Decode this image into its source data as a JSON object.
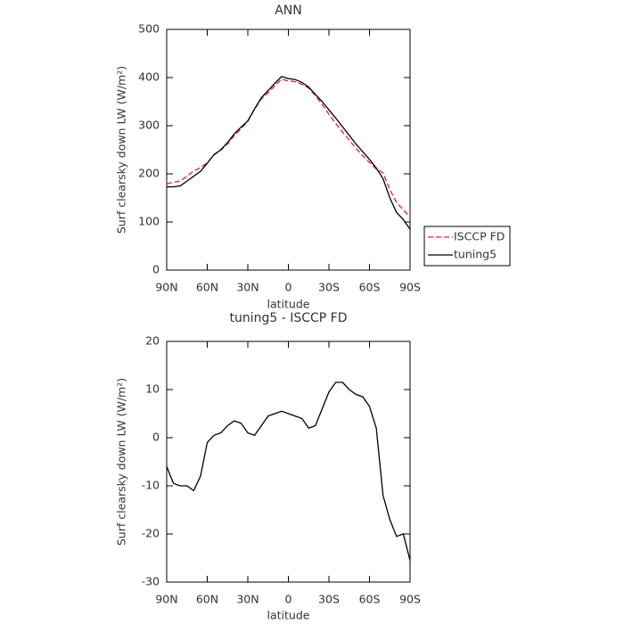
{
  "chart_data": [
    {
      "type": "line",
      "title": "ANN",
      "xlabel": "latitude",
      "ylabel": "Surf clearsky down LW (W/m²)",
      "x": [
        90,
        85,
        80,
        75,
        70,
        65,
        60,
        55,
        50,
        45,
        40,
        35,
        30,
        25,
        20,
        15,
        10,
        5,
        0,
        -5,
        -10,
        -15,
        -20,
        -25,
        -30,
        -35,
        -40,
        -45,
        -50,
        -55,
        -60,
        -65,
        -70,
        -75,
        -80,
        -85,
        -90
      ],
      "series": [
        {
          "name": "ISCCP FD",
          "color": "#e8202a",
          "dash": true,
          "values": [
            179,
            182.5,
            185,
            195,
            206,
            213,
            223,
            239.5,
            249,
            262.5,
            279.5,
            294,
            309,
            334.5,
            355.5,
            368.5,
            383,
            396.5,
            393,
            391.5,
            386,
            378,
            362.5,
            344,
            323.5,
            304.5,
            286.5,
            270,
            253,
            237.5,
            223.5,
            210,
            202,
            167,
            140.5,
            125,
            110.5
          ]
        },
        {
          "name": "tuning5",
          "color": "#000000",
          "dash": false,
          "values": [
            173,
            173,
            175,
            185,
            195,
            205,
            222,
            240,
            250,
            265,
            283,
            297,
            310,
            335,
            358,
            373,
            388,
            402,
            398,
            396,
            390,
            380,
            365,
            350,
            333,
            316,
            298,
            280,
            262,
            246,
            230,
            212,
            190,
            150,
            120,
            105,
            85
          ]
        }
      ],
      "xlim": [
        90,
        -90
      ],
      "xticks": [
        {
          "value": 90,
          "label": "90N"
        },
        {
          "value": 60,
          "label": "60N"
        },
        {
          "value": 30,
          "label": "30N"
        },
        0,
        {
          "value": -30,
          "label": "30S"
        },
        {
          "value": -60,
          "label": "60S"
        },
        {
          "value": -90,
          "label": "90S"
        }
      ],
      "ylim": [
        0,
        500
      ],
      "yticks": [
        0,
        100,
        200,
        300,
        400,
        500
      ],
      "legend": "right"
    },
    {
      "type": "line",
      "title": "tuning5 - ISCCP FD",
      "xlabel": "latitude",
      "ylabel": "Surf clearsky down LW (W/m²)",
      "x": [
        90,
        85,
        80,
        75,
        70,
        65,
        60,
        55,
        50,
        45,
        40,
        35,
        30,
        25,
        20,
        15,
        10,
        5,
        0,
        -5,
        -10,
        -15,
        -20,
        -25,
        -30,
        -35,
        -40,
        -45,
        -50,
        -55,
        -60,
        -65,
        -70,
        -75,
        -80,
        -85,
        -90
      ],
      "series": [
        {
          "color": "#000000",
          "dash": false,
          "values": [
            -6,
            -9.5,
            -10,
            -10,
            -11,
            -8,
            -1,
            0.5,
            1,
            2.5,
            3.5,
            3,
            1,
            0.5,
            2.5,
            4.5,
            5,
            5.5,
            5,
            4.5,
            4,
            2,
            2.5,
            6,
            9.5,
            11.5,
            11.5,
            10,
            9,
            8.5,
            6.5,
            2,
            -12,
            -17,
            -20.5,
            -20,
            -25.5
          ]
        }
      ],
      "xlim": [
        90,
        -90
      ],
      "xticks": [
        {
          "value": 90,
          "label": "90N"
        },
        {
          "value": 60,
          "label": "60N"
        },
        {
          "value": 30,
          "label": "30N"
        },
        0,
        {
          "value": -30,
          "label": "30S"
        },
        {
          "value": -60,
          "label": "60S"
        },
        {
          "value": -90,
          "label": "90S"
        }
      ],
      "ylim": [
        -30,
        20
      ],
      "yticks": [
        -30,
        -20,
        -10,
        0,
        10,
        20
      ]
    }
  ]
}
